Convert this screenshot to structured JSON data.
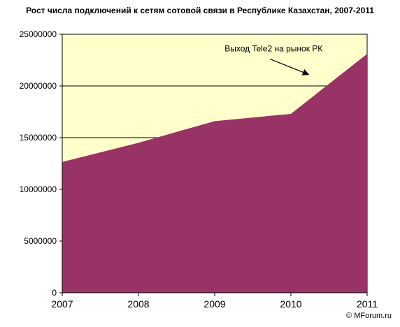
{
  "chart_data": {
    "type": "area",
    "title": "Рост числа подключений к сетям сотовой связи в Республике Казахстан, 2007-2011",
    "xlabel": "",
    "ylabel": "",
    "categories": [
      "2007",
      "2008",
      "2009",
      "2010",
      "2011"
    ],
    "series": [
      {
        "values": [
          12650000,
          14500000,
          16600000,
          17300000,
          23100000
        ]
      }
    ],
    "ylim": [
      0,
      25000000
    ],
    "yticks": [
      "0",
      "5000000",
      "10000000",
      "15000000",
      "20000000",
      "25000000"
    ],
    "grid": "horizontal",
    "legend": "none",
    "annotation": {
      "text": "Выход Tele2 на рынок РК",
      "x_position": 2010.25,
      "y_value": 20500000
    },
    "colors": {
      "plot_background": "#ffffcc",
      "area_fill": "#993366",
      "gridline": "#000000"
    }
  },
  "watermark": {
    "text": "© MForum.ru"
  }
}
